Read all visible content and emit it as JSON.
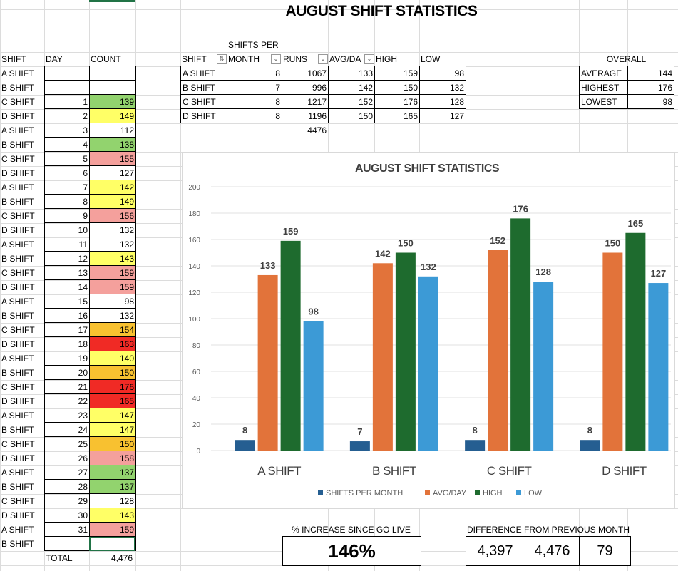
{
  "title": "AUGUST SHIFT STATISTICS",
  "left_table": {
    "headers": [
      "SHIFT",
      "DAY",
      "COUNT"
    ],
    "rows": [
      {
        "shift": "A SHIFT",
        "day": "",
        "count": "",
        "color": ""
      },
      {
        "shift": "B SHIFT",
        "day": "",
        "count": "",
        "color": ""
      },
      {
        "shift": "C SHIFT",
        "day": "1",
        "count": "139",
        "color": "#92d36e"
      },
      {
        "shift": "D SHIFT",
        "day": "2",
        "count": "149",
        "color": "#ffff66"
      },
      {
        "shift": "A SHIFT",
        "day": "3",
        "count": "112",
        "color": ""
      },
      {
        "shift": "B SHIFT",
        "day": "4",
        "count": "138",
        "color": "#92d36e"
      },
      {
        "shift": "C SHIFT",
        "day": "5",
        "count": "155",
        "color": "#f4a09c"
      },
      {
        "shift": "D SHIFT",
        "day": "6",
        "count": "127",
        "color": ""
      },
      {
        "shift": "A SHIFT",
        "day": "7",
        "count": "142",
        "color": "#ffff66"
      },
      {
        "shift": "B SHIFT",
        "day": "8",
        "count": "149",
        "color": "#ffff66"
      },
      {
        "shift": "C SHIFT",
        "day": "9",
        "count": "156",
        "color": "#f4a09c"
      },
      {
        "shift": "D SHIFT",
        "day": "10",
        "count": "132",
        "color": ""
      },
      {
        "shift": "A SHIFT",
        "day": "11",
        "count": "132",
        "color": ""
      },
      {
        "shift": "B SHIFT",
        "day": "12",
        "count": "143",
        "color": "#ffff66"
      },
      {
        "shift": "C SHIFT",
        "day": "13",
        "count": "159",
        "color": "#f4a09c"
      },
      {
        "shift": "D SHIFT",
        "day": "14",
        "count": "159",
        "color": "#f4a09c"
      },
      {
        "shift": "A SHIFT",
        "day": "15",
        "count": "98",
        "color": ""
      },
      {
        "shift": "B SHIFT",
        "day": "16",
        "count": "132",
        "color": ""
      },
      {
        "shift": "C SHIFT",
        "day": "17",
        "count": "154",
        "color": "#f8c130"
      },
      {
        "shift": "D SHIFT",
        "day": "18",
        "count": "163",
        "color": "#f02a25"
      },
      {
        "shift": "A SHIFT",
        "day": "19",
        "count": "140",
        "color": "#ffff66"
      },
      {
        "shift": "B SHIFT",
        "day": "20",
        "count": "150",
        "color": "#f8c130"
      },
      {
        "shift": "C SHIFT",
        "day": "21",
        "count": "176",
        "color": "#f02a25"
      },
      {
        "shift": "D SHIFT",
        "day": "22",
        "count": "165",
        "color": "#f02a25"
      },
      {
        "shift": "A SHIFT",
        "day": "23",
        "count": "147",
        "color": "#ffff66"
      },
      {
        "shift": "B SHIFT",
        "day": "24",
        "count": "147",
        "color": "#ffff66"
      },
      {
        "shift": "C SHIFT",
        "day": "25",
        "count": "150",
        "color": "#f8c130"
      },
      {
        "shift": "D SHIFT",
        "day": "26",
        "count": "158",
        "color": "#f4a09c"
      },
      {
        "shift": "A SHIFT",
        "day": "27",
        "count": "137",
        "color": "#92d36e"
      },
      {
        "shift": "B SHIFT",
        "day": "28",
        "count": "137",
        "color": "#92d36e"
      },
      {
        "shift": "C SHIFT",
        "day": "29",
        "count": "128",
        "color": ""
      },
      {
        "shift": "D SHIFT",
        "day": "30",
        "count": "143",
        "color": "#ffff66"
      },
      {
        "shift": "A SHIFT",
        "day": "31",
        "count": "159",
        "color": "#f4a09c"
      },
      {
        "shift": "B SHIFT",
        "day": "",
        "count": "",
        "color": ""
      }
    ],
    "total_label": "TOTAL",
    "total": "4,476"
  },
  "summary_table": {
    "headers": [
      "SHIFT",
      "SHIFTS PER",
      "MONTH",
      "RUNS",
      "AVG/DA",
      "HIGH",
      "LOW"
    ],
    "rows": [
      [
        "A SHIFT",
        "8",
        "1067",
        "133",
        "159",
        "98"
      ],
      [
        "B SHIFT",
        "7",
        "996",
        "142",
        "150",
        "132"
      ],
      [
        "C SHIFT",
        "8",
        "1217",
        "152",
        "176",
        "128"
      ],
      [
        "D SHIFT",
        "8",
        "1196",
        "150",
        "165",
        "127"
      ]
    ],
    "runs_total": "4476"
  },
  "overall": {
    "header": "OVERALL",
    "rows": [
      [
        "AVERAGE",
        "144"
      ],
      [
        "HIGHEST",
        "176"
      ],
      [
        "LOWEST",
        "98"
      ]
    ]
  },
  "increase": {
    "label": "% INCREASE SINCE GO LIVE",
    "value": "146%"
  },
  "difference": {
    "label": "DIFFERENCE FROM PREVIOUS MONTH",
    "values": [
      "4,397",
      "4,476",
      "79"
    ]
  },
  "chart_data": {
    "type": "bar",
    "title": "AUGUST SHIFT STATISTICS",
    "categories": [
      "A SHIFT",
      "B SHIFT",
      "C SHIFT",
      "D SHIFT"
    ],
    "series": [
      {
        "name": "SHIFTS PER MONTH",
        "values": [
          8,
          7,
          8,
          8
        ],
        "color": "#255e91"
      },
      {
        "name": "AVG/DAY",
        "values": [
          133,
          142,
          152,
          150
        ],
        "color": "#e2733a"
      },
      {
        "name": "HIGH",
        "values": [
          159,
          150,
          176,
          165
        ],
        "color": "#1e6b2e"
      },
      {
        "name": "LOW",
        "values": [
          98,
          132,
          128,
          127
        ],
        "color": "#3c9ad6"
      }
    ],
    "ylim": [
      0,
      200
    ],
    "yticks": [
      0,
      20,
      40,
      60,
      80,
      100,
      120,
      140,
      160,
      180,
      200
    ],
    "legend": "bottom",
    "grid": true
  }
}
